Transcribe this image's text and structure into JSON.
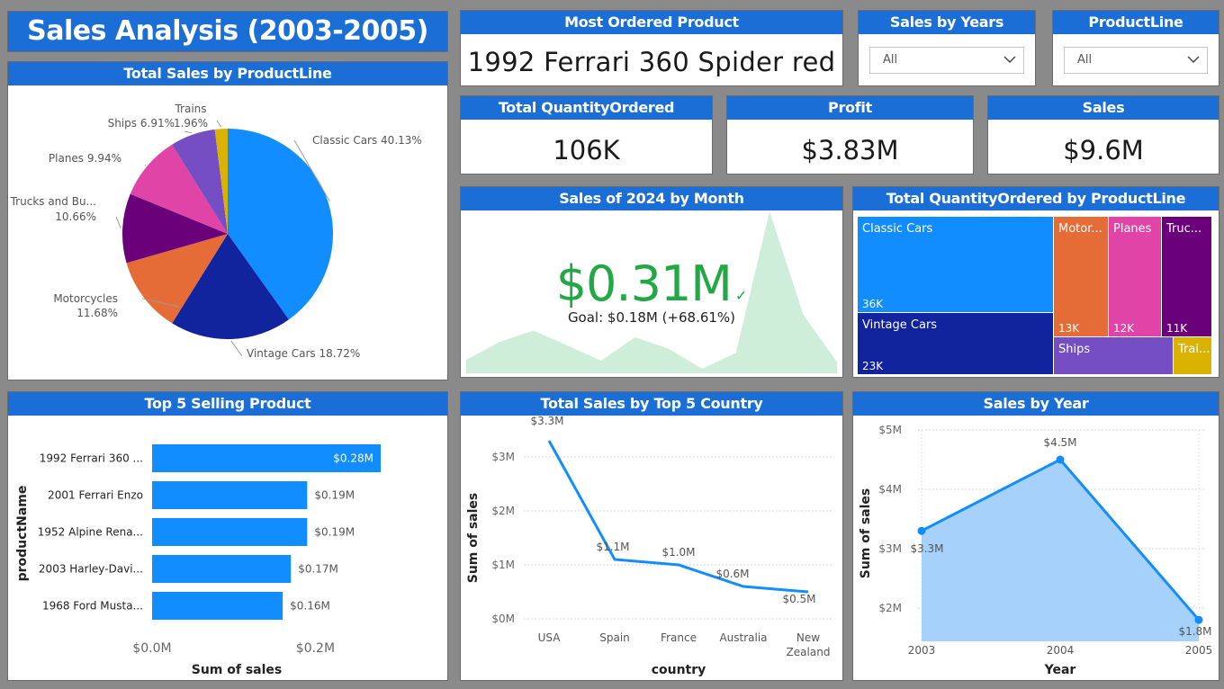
{
  "header": {
    "title": "Sales Analysis (2003-2005)"
  },
  "most_ordered": {
    "title": "Most Ordered Product",
    "value": "1992 Ferrari 360 Spider red"
  },
  "slicers": [
    {
      "title": "Sales by Years",
      "value": "All"
    },
    {
      "title": "ProductLine",
      "value": "All"
    }
  ],
  "kpis": {
    "quantity": {
      "title": "Total QuantityOrdered",
      "value": "106K"
    },
    "profit": {
      "title": "Profit",
      "value": "$3.83M"
    },
    "sales": {
      "title": "Sales",
      "value": "$9.6M"
    }
  },
  "monthly": {
    "title": "Sales of 2024 by Month",
    "value": "$0.31M",
    "goal": "Goal: $0.18M (+68.61%)",
    "check": "✓",
    "accent": "#22a845"
  },
  "colors": {
    "header": "#1a6ed6",
    "bar": "#118dff",
    "area": "#a6d1fa"
  },
  "chart_data": [
    {
      "type": "pie",
      "title": "Total Sales by ProductLine",
      "categories": [
        "Classic Cars",
        "Vintage Cars",
        "Motorcycles",
        "Trucks and Bu...",
        "Planes",
        "Ships",
        "Trains"
      ],
      "values": [
        40.13,
        18.72,
        11.68,
        10.66,
        9.94,
        6.91,
        1.96
      ],
      "labels": [
        "Classic Cars 40.13%",
        "Vintage Cars 18.72%",
        "Motorcycles",
        "11.68%",
        "Trucks and Bu...",
        "10.66%",
        "Planes 9.94%",
        "Ships 6.91%",
        "1.96%",
        "Trains"
      ],
      "colors": [
        "#118dff",
        "#12239e",
        "#e66c37",
        "#6b007b",
        "#e044a7",
        "#744ec2",
        "#d9b300"
      ]
    },
    {
      "type": "treemap",
      "title": "Total QuantityOrdered by ProductLine",
      "categories": [
        "Classic Cars",
        "Vintage Cars",
        "Motor...",
        "Planes",
        "Truc...",
        "Ships",
        "Trai..."
      ],
      "value_labels": [
        "36K",
        "23K",
        "13K",
        "12K",
        "11K",
        "",
        ""
      ],
      "colors": [
        "#118dff",
        "#12239e",
        "#e66c37",
        "#e044a7",
        "#6b007b",
        "#744ec2",
        "#d9b300"
      ]
    },
    {
      "type": "bar",
      "title": "Top 5 Selling Product",
      "categories": [
        "1992 Ferrari 360 ...",
        "2001 Ferrari Enzo",
        "1952 Alpine Rena...",
        "2003 Harley-Davi...",
        "1968 Ford Musta..."
      ],
      "values": [
        0.28,
        0.19,
        0.19,
        0.17,
        0.16
      ],
      "data_labels": [
        "$0.28M",
        "$0.19M",
        "$0.19M",
        "$0.17M",
        "$0.16M"
      ],
      "xticks": [
        "$0.0M",
        "$0.2M"
      ],
      "xlabel": "Sum of sales",
      "ylabel": "productName",
      "xlim": [
        0,
        0.35
      ]
    },
    {
      "type": "line",
      "title": "Total Sales by Top 5 Country",
      "categories": [
        "USA",
        "Spain",
        "France",
        "Australia",
        "New Zealand"
      ],
      "tick_labels": [
        [
          "USA"
        ],
        [
          "Spain"
        ],
        [
          "France"
        ],
        [
          "Australia"
        ],
        [
          "New",
          "Zealand"
        ]
      ],
      "values": [
        3.3,
        1.1,
        1.0,
        0.6,
        0.5
      ],
      "data_labels": [
        "$3.3M",
        "$1.1M",
        "$1.0M",
        "$0.6M",
        "$0.5M"
      ],
      "yticks": [
        "$0M",
        "$1M",
        "$2M",
        "$3M"
      ],
      "xlabel": "country",
      "ylabel": "Sum of sales",
      "ylim": [
        0,
        3.5
      ]
    },
    {
      "type": "area",
      "title": "Sales by Year",
      "categories": [
        "2003",
        "2004",
        "2005"
      ],
      "values": [
        3.3,
        4.5,
        1.8
      ],
      "data_labels": [
        "$3.3M",
        "$4.5M",
        "$1.8M"
      ],
      "yticks": [
        "$2M",
        "$3M",
        "$4M",
        "$5M"
      ],
      "xlabel": "Year",
      "ylabel": "Sum of sales",
      "ylim": [
        1.5,
        5
      ]
    },
    {
      "type": "area",
      "values": [
        0.3,
        0.7,
        0.95,
        0.62,
        0.28,
        0.8,
        0.55,
        0.1,
        0.45,
        3.6,
        1.3,
        0.25
      ]
    }
  ]
}
